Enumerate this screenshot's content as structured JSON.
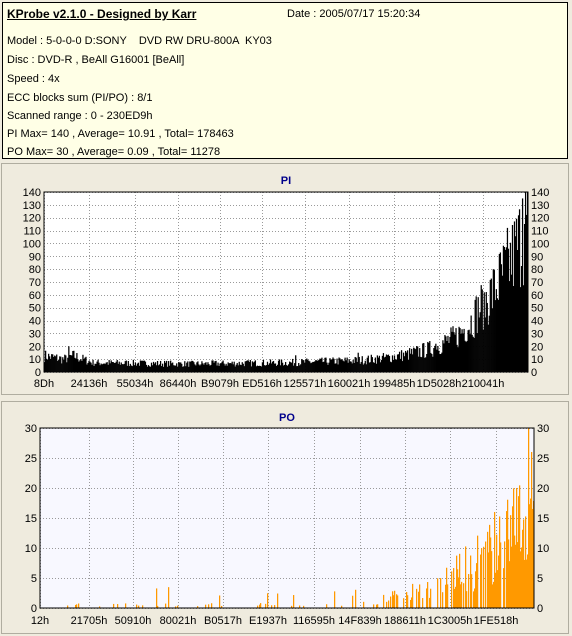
{
  "info": {
    "app_title": "KProbe v2.1.0 - Designed by Karr",
    "date": "Date : 2005/07/17 15:20:34",
    "lines": [
      "Model : 5-0-0-0 D:SONY    DVD RW DRU-800A  KY03",
      "Disc : DVD-R , BeAll G16001 [BeAll]",
      "Speed : 4x",
      "ECC blocks sum (PI/PO) : 8/1",
      "Scanned range : 0 - 230ED9h",
      "PI Max= 140 , Average= 10.91 , Total= 178463",
      "PO Max= 30 , Average= 0.09 , Total= 11278"
    ]
  },
  "chart_data": [
    {
      "type": "bar",
      "title": "PI",
      "xlabel": "",
      "ylabel": "",
      "ylim": [
        0,
        140
      ],
      "yticks": [
        0,
        10,
        20,
        30,
        40,
        50,
        60,
        70,
        80,
        90,
        100,
        110,
        120,
        130,
        140
      ],
      "xtick_labels": [
        "8Dh",
        "24136h",
        "55034h",
        "86440h",
        "B9079h",
        "ED516h",
        "125571h",
        "160021h",
        "199485h",
        "1D5028h",
        "210041h"
      ],
      "plot_background": "#ffffff",
      "bar_color": "#000000",
      "grid": true,
      "profile": [
        [
          0,
          14
        ],
        [
          0.04,
          11
        ],
        [
          0.06,
          14
        ],
        [
          0.1,
          8
        ],
        [
          0.3,
          7
        ],
        [
          0.5,
          8
        ],
        [
          0.65,
          10
        ],
        [
          0.7,
          12
        ],
        [
          0.75,
          15
        ],
        [
          0.8,
          20
        ],
        [
          0.85,
          30
        ],
        [
          0.88,
          42
        ],
        [
          0.9,
          55
        ],
        [
          0.93,
          70
        ],
        [
          0.95,
          85
        ],
        [
          0.97,
          100
        ],
        [
          0.99,
          118
        ],
        [
          1.0,
          125
        ]
      ],
      "peaks": [
        [
          0.05,
          20
        ],
        [
          0.52,
          13
        ],
        [
          0.65,
          15
        ],
        [
          0.81,
          22
        ],
        [
          0.91,
          62
        ],
        [
          0.955,
          95
        ],
        [
          0.99,
          135
        ],
        [
          0.995,
          140
        ]
      ]
    },
    {
      "type": "bar",
      "title": "PO",
      "xlabel": "",
      "ylabel": "",
      "ylim": [
        0,
        30
      ],
      "yticks": [
        0,
        5,
        10,
        15,
        20,
        25,
        30
      ],
      "xtick_labels": [
        "12h",
        "21705h",
        "50910h",
        "80021h",
        "B0517h",
        "E1937h",
        "116595h",
        "14F839h",
        "188611h",
        "1C3005h",
        "1FE518h"
      ],
      "plot_background": "#f8f8ff",
      "bar_color": "#ff9900",
      "grid": true,
      "profile": [
        [
          0,
          0.5
        ],
        [
          0.5,
          0.5
        ],
        [
          0.6,
          0.8
        ],
        [
          0.7,
          1.5
        ],
        [
          0.78,
          3
        ],
        [
          0.84,
          5
        ],
        [
          0.88,
          7
        ],
        [
          0.92,
          9
        ],
        [
          0.95,
          11
        ],
        [
          0.98,
          14
        ],
        [
          1.0,
          17
        ]
      ],
      "peaks": [
        [
          0.52,
          2
        ],
        [
          0.86,
          13
        ],
        [
          0.92,
          16
        ],
        [
          0.965,
          20
        ],
        [
          0.99,
          30
        ],
        [
          0.995,
          26
        ]
      ]
    }
  ]
}
